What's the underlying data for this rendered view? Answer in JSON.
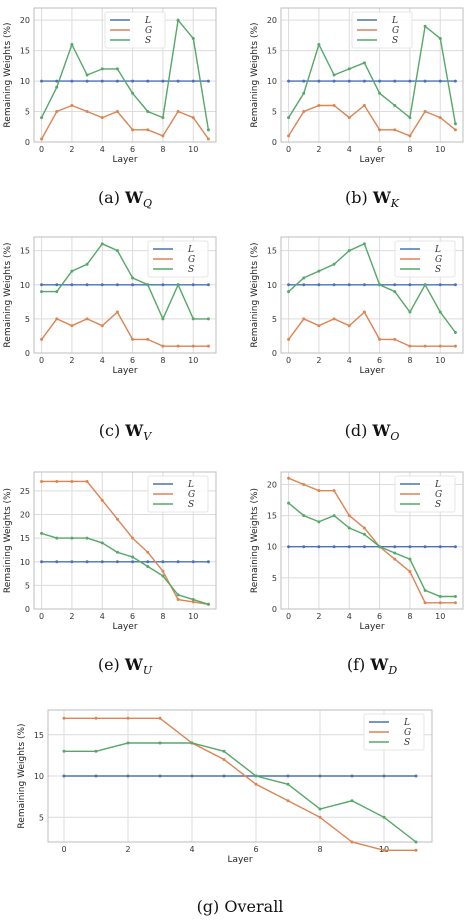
{
  "colors": {
    "L": "#4c72b0",
    "G": "#dd8452",
    "S": "#55a868",
    "grid": "#dcdcdc",
    "frame": "#bdbdbd"
  },
  "chart_data": [
    {
      "type": "line",
      "caption_prefix": "(a)",
      "caption_symbol": "W",
      "caption_sub": "Q",
      "xlabel": "Layer",
      "ylabel": "Remaining Weights (%)",
      "x": [
        0,
        1,
        2,
        3,
        4,
        5,
        6,
        7,
        8,
        9,
        10,
        11
      ],
      "xticks": [
        0,
        2,
        4,
        6,
        8,
        10
      ],
      "yticks": [
        0,
        5,
        10,
        15,
        20
      ],
      "ylim": [
        0,
        22
      ],
      "xlim": [
        -0.5,
        11.5
      ],
      "legend": "top-center",
      "series": [
        {
          "name": "L",
          "values": [
            10,
            10,
            10,
            10,
            10,
            10,
            10,
            10,
            10,
            10,
            10,
            10
          ]
        },
        {
          "name": "G",
          "values": [
            0.5,
            5,
            6,
            5,
            4,
            5,
            2,
            2,
            1,
            5,
            4,
            0.5
          ]
        },
        {
          "name": "S",
          "values": [
            4,
            9,
            16,
            11,
            12,
            12,
            8,
            5,
            4,
            20,
            17,
            2
          ]
        }
      ]
    },
    {
      "type": "line",
      "caption_prefix": "(b)",
      "caption_symbol": "W",
      "caption_sub": "K",
      "xlabel": "Layer",
      "ylabel": "Remaining Weights (%)",
      "x": [
        0,
        1,
        2,
        3,
        4,
        5,
        6,
        7,
        8,
        9,
        10,
        11
      ],
      "xticks": [
        0,
        2,
        4,
        6,
        8,
        10
      ],
      "yticks": [
        0,
        5,
        10,
        15,
        20
      ],
      "ylim": [
        0,
        22
      ],
      "xlim": [
        -0.5,
        11.5
      ],
      "legend": "top-center",
      "series": [
        {
          "name": "L",
          "values": [
            10,
            10,
            10,
            10,
            10,
            10,
            10,
            10,
            10,
            10,
            10,
            10
          ]
        },
        {
          "name": "G",
          "values": [
            1,
            5,
            6,
            6,
            4,
            6,
            2,
            2,
            1,
            5,
            4,
            2
          ]
        },
        {
          "name": "S",
          "values": [
            4,
            8,
            16,
            11,
            12,
            13,
            8,
            6,
            4,
            19,
            17,
            3
          ]
        }
      ]
    },
    {
      "type": "line",
      "caption_prefix": "(c)",
      "caption_symbol": "W",
      "caption_sub": "V",
      "xlabel": "Layer",
      "ylabel": "Remaining Weights (%)",
      "x": [
        0,
        1,
        2,
        3,
        4,
        5,
        6,
        7,
        8,
        9,
        10,
        11
      ],
      "xticks": [
        0,
        2,
        4,
        6,
        8,
        10
      ],
      "yticks": [
        0,
        5,
        10,
        15
      ],
      "ylim": [
        0,
        17
      ],
      "xlim": [
        -0.5,
        11.5
      ],
      "legend": "top-right",
      "series": [
        {
          "name": "L",
          "values": [
            10,
            10,
            10,
            10,
            10,
            10,
            10,
            10,
            10,
            10,
            10,
            10
          ]
        },
        {
          "name": "G",
          "values": [
            2,
            5,
            4,
            5,
            4,
            6,
            2,
            2,
            1,
            1,
            1,
            1
          ]
        },
        {
          "name": "S",
          "values": [
            9,
            9,
            12,
            13,
            16,
            15,
            11,
            10,
            5,
            10,
            5,
            5
          ]
        }
      ]
    },
    {
      "type": "line",
      "caption_prefix": "(d)",
      "caption_symbol": "W",
      "caption_sub": "O",
      "xlabel": "Layer",
      "ylabel": "Remaining Weights (%)",
      "x": [
        0,
        1,
        2,
        3,
        4,
        5,
        6,
        7,
        8,
        9,
        10,
        11
      ],
      "xticks": [
        0,
        2,
        4,
        6,
        8,
        10
      ],
      "yticks": [
        0,
        5,
        10,
        15
      ],
      "ylim": [
        0,
        17
      ],
      "xlim": [
        -0.5,
        11.5
      ],
      "legend": "top-right",
      "series": [
        {
          "name": "L",
          "values": [
            10,
            10,
            10,
            10,
            10,
            10,
            10,
            10,
            10,
            10,
            10,
            10
          ]
        },
        {
          "name": "G",
          "values": [
            2,
            5,
            4,
            5,
            4,
            6,
            2,
            2,
            1,
            1,
            1,
            1
          ]
        },
        {
          "name": "S",
          "values": [
            9,
            11,
            12,
            13,
            15,
            16,
            10,
            9,
            6,
            10,
            6,
            3
          ]
        }
      ]
    },
    {
      "type": "line",
      "caption_prefix": "(e)",
      "caption_symbol": "W",
      "caption_sub": "U",
      "xlabel": "Layer",
      "ylabel": "Remaining Weights (%)",
      "x": [
        0,
        1,
        2,
        3,
        4,
        5,
        6,
        7,
        8,
        9,
        10,
        11
      ],
      "xticks": [
        0,
        2,
        4,
        6,
        8,
        10
      ],
      "yticks": [
        0,
        5,
        10,
        15,
        20,
        25
      ],
      "ylim": [
        0,
        29
      ],
      "xlim": [
        -0.5,
        11.5
      ],
      "legend": "top-right",
      "series": [
        {
          "name": "L",
          "values": [
            10,
            10,
            10,
            10,
            10,
            10,
            10,
            10,
            10,
            10,
            10,
            10
          ]
        },
        {
          "name": "G",
          "values": [
            27,
            27,
            27,
            27,
            23,
            19,
            15,
            12,
            8,
            2,
            1.5,
            1
          ]
        },
        {
          "name": "S",
          "values": [
            16,
            15,
            15,
            15,
            14,
            12,
            11,
            9,
            7,
            3,
            2,
            1
          ]
        }
      ]
    },
    {
      "type": "line",
      "caption_prefix": "(f)",
      "caption_symbol": "W",
      "caption_sub": "D",
      "xlabel": "Layer",
      "ylabel": "Remaining Weights (%)",
      "x": [
        0,
        1,
        2,
        3,
        4,
        5,
        6,
        7,
        8,
        9,
        10,
        11
      ],
      "xticks": [
        0,
        2,
        4,
        6,
        8,
        10
      ],
      "yticks": [
        0,
        5,
        10,
        15,
        20
      ],
      "ylim": [
        0,
        22
      ],
      "xlim": [
        -0.5,
        11.5
      ],
      "legend": "top-right",
      "series": [
        {
          "name": "L",
          "values": [
            10,
            10,
            10,
            10,
            10,
            10,
            10,
            10,
            10,
            10,
            10,
            10
          ]
        },
        {
          "name": "G",
          "values": [
            21,
            20,
            19,
            19,
            15,
            13,
            10,
            8,
            6,
            1,
            1,
            1
          ]
        },
        {
          "name": "S",
          "values": [
            17,
            15,
            14,
            15,
            13,
            12,
            10,
            9,
            8,
            3,
            2,
            2
          ]
        }
      ]
    },
    {
      "type": "line",
      "caption_prefix": "(g)",
      "caption_text": "Overall",
      "xlabel": "Layer",
      "ylabel": "Remaining Weights (%)",
      "x": [
        0,
        1,
        2,
        3,
        4,
        5,
        6,
        7,
        8,
        9,
        10,
        11
      ],
      "xticks": [
        0,
        2,
        4,
        6,
        8,
        10
      ],
      "yticks": [
        5,
        10,
        15
      ],
      "ylim": [
        2,
        18
      ],
      "xlim": [
        -0.5,
        11.5
      ],
      "legend": "top-right",
      "series": [
        {
          "name": "L",
          "values": [
            10,
            10,
            10,
            10,
            10,
            10,
            10,
            10,
            10,
            10,
            10,
            10
          ]
        },
        {
          "name": "G",
          "values": [
            17,
            17,
            17,
            17,
            14,
            12,
            9,
            7,
            5,
            2,
            1,
            1
          ]
        },
        {
          "name": "S",
          "values": [
            13,
            13,
            14,
            14,
            14,
            13,
            10,
            9,
            6,
            7,
            5,
            2
          ]
        }
      ]
    }
  ]
}
